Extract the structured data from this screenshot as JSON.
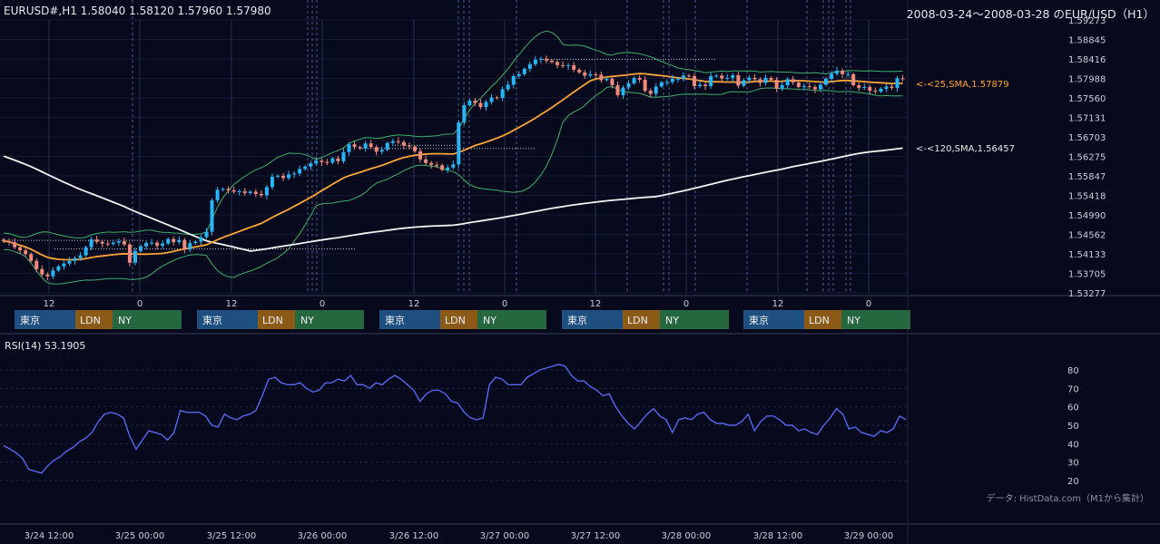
{
  "header": {
    "symbol_line": "EURUSD#,H1 1.58040 1.58120 1.57960 1.57980",
    "range_title": "2008-03-24～2008-03-28 のEUR/USD（H1）"
  },
  "rsi_header": "RSI(14) 53.1905",
  "source_note": "データ: HistData.com（M1から集計）",
  "colors": {
    "background": "#070a1c",
    "bull": "#29b6f6",
    "bear": "#f08a7c",
    "sma25": "#ffa53a",
    "sma120": "#f2f2f2",
    "bollinger": "#3fae6a",
    "rsi": "#5566ee",
    "tokyo": "#1e4f80",
    "london": "#8a5a16",
    "newyork": "#25683f"
  },
  "chart_data": [
    {
      "type": "candlestick",
      "title": "EURUSD#,H1",
      "y_ticks": [
        "1.59273",
        "1.58845",
        "1.58416",
        "1.57988",
        "1.57560",
        "1.57131",
        "1.56703",
        "1.56275",
        "1.55847",
        "1.55418",
        "1.54990",
        "1.54562",
        "1.54133",
        "1.53705",
        "1.53277"
      ],
      "ylim": [
        1.53277,
        1.59273
      ],
      "x_ticks": [
        "12",
        "0",
        "12",
        "0",
        "12",
        "0",
        "12",
        "0",
        "12",
        "0"
      ],
      "last_bar": {
        "open": 1.5804,
        "high": 1.5812,
        "low": 1.5796,
        "close": 1.5798
      },
      "sma25": {
        "label": "<-<25,SMA,1.57879",
        "last": 1.57879
      },
      "sma120": {
        "label": "<-<120,SMA,1.56457",
        "last": 1.56457
      },
      "bollinger": "20-period bands",
      "sessions": [
        {
          "tokyo": "東京",
          "london": "LDN",
          "newyork": "NY"
        },
        {
          "tokyo": "東京",
          "london": "LDN",
          "newyork": "NY"
        },
        {
          "tokyo": "東京",
          "london": "LDN",
          "newyork": "NY"
        },
        {
          "tokyo": "東京",
          "london": "LDN",
          "newyork": "NY"
        },
        {
          "tokyo": "東京",
          "london": "LDN",
          "newyork": "NY"
        }
      ],
      "closes": [
        1.5441,
        1.5439,
        1.5428,
        1.5421,
        1.5413,
        1.5398,
        1.538,
        1.5368,
        1.5364,
        1.5377,
        1.5386,
        1.5392,
        1.5398,
        1.5404,
        1.541,
        1.5428,
        1.5445,
        1.544,
        1.5436,
        1.5435,
        1.5438,
        1.5441,
        1.5434,
        1.5394,
        1.542,
        1.543,
        1.5437,
        1.5438,
        1.5431,
        1.5436,
        1.5446,
        1.5439,
        1.5444,
        1.5423,
        1.5437,
        1.544,
        1.545,
        1.5462,
        1.5531,
        1.5554,
        1.5556,
        1.5553,
        1.555,
        1.5551,
        1.5547,
        1.555,
        1.5545,
        1.5542,
        1.556,
        1.5583,
        1.5585,
        1.558,
        1.5588,
        1.559,
        1.56,
        1.5605,
        1.5612,
        1.5618,
        1.5615,
        1.5614,
        1.5623,
        1.5617,
        1.5637,
        1.5654,
        1.5648,
        1.5645,
        1.5656,
        1.5648,
        1.5638,
        1.5642,
        1.5657,
        1.5661,
        1.5659,
        1.5651,
        1.5649,
        1.5639,
        1.5621,
        1.5613,
        1.5609,
        1.5608,
        1.5598,
        1.5603,
        1.561,
        1.5702,
        1.574,
        1.575,
        1.5745,
        1.5736,
        1.5747,
        1.5757,
        1.5756,
        1.5775,
        1.5785,
        1.5804,
        1.5808,
        1.582,
        1.583,
        1.584,
        1.5842,
        1.5838,
        1.5835,
        1.5828,
        1.5826,
        1.5828,
        1.5818,
        1.5812,
        1.5805,
        1.5808,
        1.5807,
        1.5795,
        1.5798,
        1.5784,
        1.5762,
        1.5779,
        1.5788,
        1.58,
        1.5796,
        1.5772,
        1.5765,
        1.5781,
        1.579,
        1.5791,
        1.5798,
        1.5798,
        1.5805,
        1.5804,
        1.5782,
        1.5785,
        1.5782,
        1.5804,
        1.5805,
        1.5799,
        1.58,
        1.5806,
        1.5783,
        1.5795,
        1.58,
        1.5797,
        1.5789,
        1.58,
        1.5796,
        1.5776,
        1.5784,
        1.5797,
        1.579,
        1.578,
        1.5782,
        1.578,
        1.5775,
        1.5785,
        1.5798,
        1.5809,
        1.5816,
        1.5808,
        1.5808,
        1.5784,
        1.5778,
        1.578,
        1.5772,
        1.577,
        1.5776,
        1.5781,
        1.5778,
        1.5799,
        1.5798
      ]
    },
    {
      "type": "line",
      "title": "RSI(14) 53.1905",
      "y_ticks": [
        "80",
        "70",
        "60",
        "50",
        "40",
        "30",
        "20"
      ],
      "ylim": [
        18,
        86
      ],
      "x_labels": [
        "3/24 12:00",
        "3/25 00:00",
        "3/25 12:00",
        "3/26 00:00",
        "3/26 12:00",
        "3/27 00:00",
        "3/27 12:00",
        "3/28 00:00",
        "3/28 12:00",
        "3/29 00:00"
      ],
      "values": [
        39,
        37,
        35,
        32,
        26,
        25,
        24,
        28,
        31,
        33,
        36,
        38,
        41,
        43,
        46,
        52,
        56,
        57,
        56,
        54,
        44,
        37,
        42,
        47,
        46,
        45,
        42,
        46,
        58,
        57,
        57,
        57,
        55,
        50,
        49,
        56,
        54,
        53,
        55,
        56,
        58,
        66,
        75,
        76,
        73,
        72,
        72,
        73,
        70,
        68,
        69,
        73,
        73,
        75,
        74,
        77,
        72,
        72,
        70,
        73,
        72,
        75,
        77,
        75,
        72,
        69,
        63,
        67,
        69,
        69,
        67,
        63,
        62,
        57,
        54,
        53,
        54,
        72,
        76,
        75,
        72,
        72,
        72,
        76,
        78,
        80,
        81,
        82,
        83,
        82,
        77,
        74,
        74,
        71,
        69,
        66,
        67,
        60,
        55,
        51,
        48,
        52,
        56,
        59,
        55,
        53,
        46,
        53,
        54,
        53,
        56,
        57,
        53,
        51,
        51,
        50,
        50,
        52,
        56,
        47,
        52,
        55,
        55,
        53,
        50,
        50,
        47,
        48,
        46,
        45,
        50,
        54,
        59,
        56,
        48,
        49,
        46,
        45,
        44,
        47,
        46,
        48,
        55,
        53
      ]
    }
  ]
}
